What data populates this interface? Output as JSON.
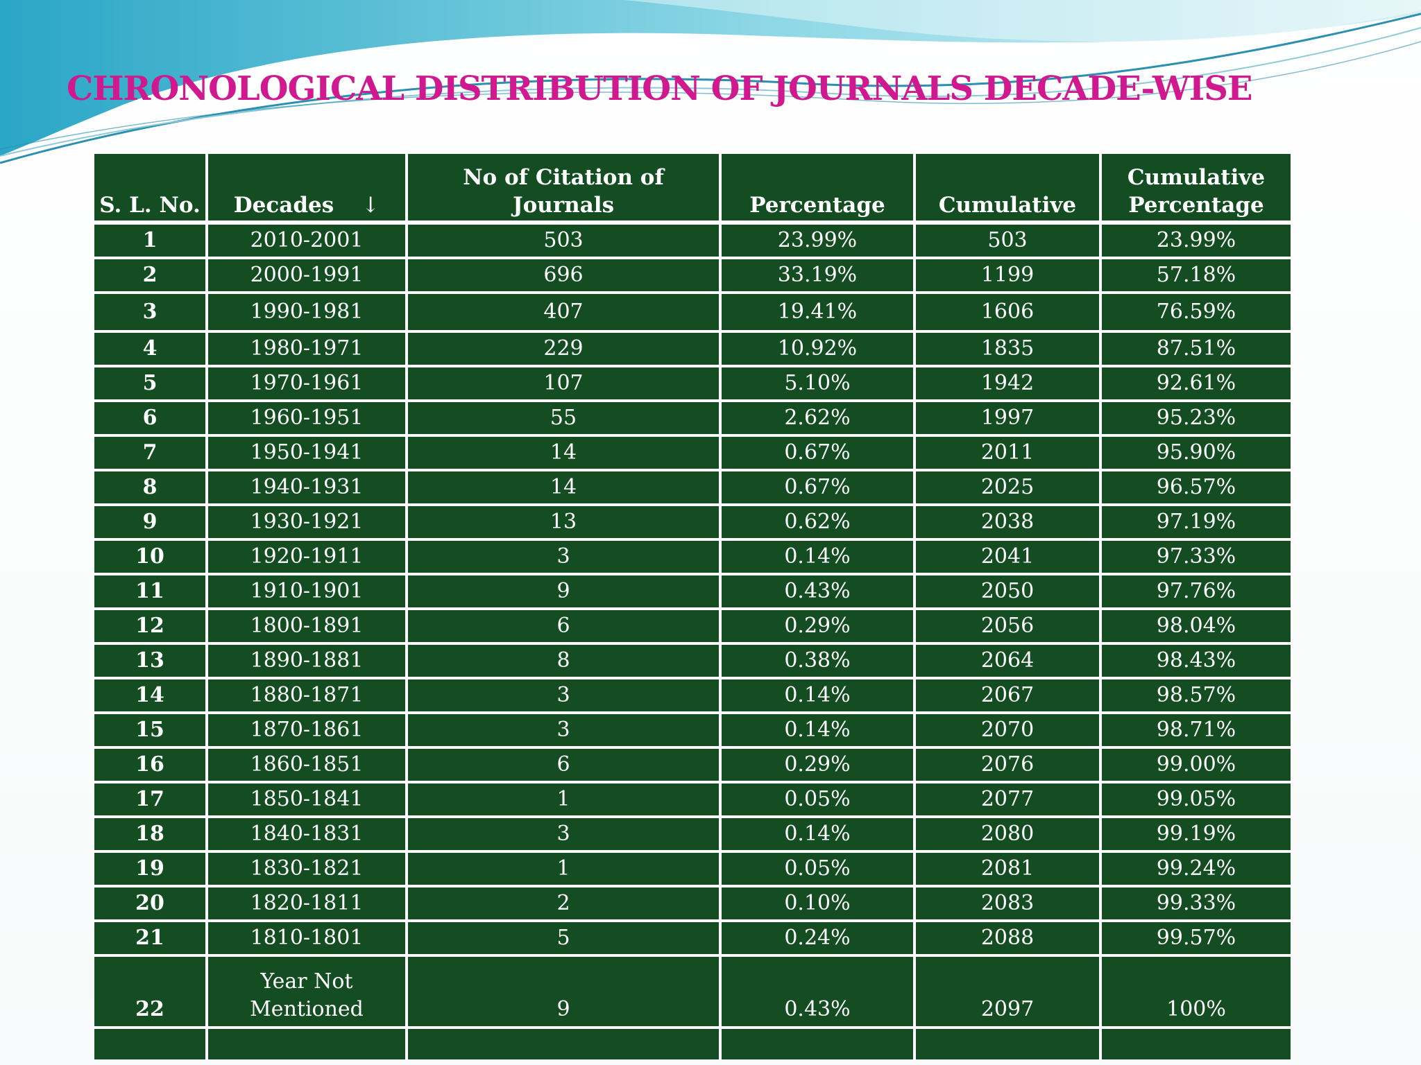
{
  "title": "CHRONOLOGICAL DISTRIBUTION OF JOURNALS DECADE-WISE",
  "colors": {
    "title": "#d0188f",
    "table_bg": "#144d22",
    "table_text": "#ffffff",
    "wave_dark": "#2aa6c6",
    "wave_light": "#8fd8e6"
  },
  "table": {
    "headers": {
      "sl": "S. L. No.",
      "decades": "Decades",
      "decades_arrow": "↓",
      "citations": "No of Citation of Journals",
      "percentage": "Percentage",
      "cumulative": "Cumulative",
      "cum_pct_line1": "Cumulative",
      "cum_pct_line2": "Percentage"
    },
    "rows": [
      {
        "sl": "1",
        "decade": "2010-2001",
        "count": "503",
        "pct": "23.99%",
        "cum": "503",
        "cum_pct": "23.99%"
      },
      {
        "sl": "2",
        "decade": "2000-1991",
        "count": "696",
        "pct": "33.19%",
        "cum": "1199",
        "cum_pct": "57.18%"
      },
      {
        "sl": "3",
        "decade": "1990-1981",
        "count": "407",
        "pct": "19.41%",
        "cum": "1606",
        "cum_pct": "76.59%"
      },
      {
        "sl": "4",
        "decade": "1980-1971",
        "count": "229",
        "pct": "10.92%",
        "cum": "1835",
        "cum_pct": "87.51%"
      },
      {
        "sl": "5",
        "decade": "1970-1961",
        "count": "107",
        "pct": "5.10%",
        "cum": "1942",
        "cum_pct": "92.61%"
      },
      {
        "sl": "6",
        "decade": "1960-1951",
        "count": "55",
        "pct": "2.62%",
        "cum": "1997",
        "cum_pct": "95.23%"
      },
      {
        "sl": "7",
        "decade": "1950-1941",
        "count": "14",
        "pct": "0.67%",
        "cum": "2011",
        "cum_pct": "95.90%"
      },
      {
        "sl": "8",
        "decade": "1940-1931",
        "count": "14",
        "pct": "0.67%",
        "cum": "2025",
        "cum_pct": "96.57%"
      },
      {
        "sl": "9",
        "decade": "1930-1921",
        "count": "13",
        "pct": "0.62%",
        "cum": "2038",
        "cum_pct": "97.19%"
      },
      {
        "sl": "10",
        "decade": "1920-1911",
        "count": "3",
        "pct": "0.14%",
        "cum": "2041",
        "cum_pct": "97.33%"
      },
      {
        "sl": "11",
        "decade": "1910-1901",
        "count": "9",
        "pct": "0.43%",
        "cum": "2050",
        "cum_pct": "97.76%"
      },
      {
        "sl": "12",
        "decade": "1800-1891",
        "count": "6",
        "pct": "0.29%",
        "cum": "2056",
        "cum_pct": "98.04%"
      },
      {
        "sl": "13",
        "decade": "1890-1881",
        "count": "8",
        "pct": "0.38%",
        "cum": "2064",
        "cum_pct": "98.43%"
      },
      {
        "sl": "14",
        "decade": "1880-1871",
        "count": "3",
        "pct": "0.14%",
        "cum": "2067",
        "cum_pct": "98.57%"
      },
      {
        "sl": "15",
        "decade": "1870-1861",
        "count": "3",
        "pct": "0.14%",
        "cum": "2070",
        "cum_pct": "98.71%"
      },
      {
        "sl": "16",
        "decade": "1860-1851",
        "count": "6",
        "pct": "0.29%",
        "cum": "2076",
        "cum_pct": "99.00%"
      },
      {
        "sl": "17",
        "decade": "1850-1841",
        "count": "1",
        "pct": "0.05%",
        "cum": "2077",
        "cum_pct": "99.05%"
      },
      {
        "sl": "18",
        "decade": "1840-1831",
        "count": "3",
        "pct": "0.14%",
        "cum": "2080",
        "cum_pct": "99.19%"
      },
      {
        "sl": "19",
        "decade": "1830-1821",
        "count": "1",
        "pct": "0.05%",
        "cum": "2081",
        "cum_pct": "99.24%"
      },
      {
        "sl": "20",
        "decade": "1820-1811",
        "count": "2",
        "pct": "0.10%",
        "cum": "2083",
        "cum_pct": "99.33%"
      },
      {
        "sl": "21",
        "decade": "1810-1801",
        "count": "5",
        "pct": "0.24%",
        "cum": "2088",
        "cum_pct": "99.57%"
      }
    ],
    "last_row": {
      "sl": "22",
      "decade_line1": "Year Not",
      "decade_line2": "Mentioned",
      "count": "9",
      "pct": "0.43%",
      "cum": "2097",
      "cum_pct": "100%"
    }
  }
}
